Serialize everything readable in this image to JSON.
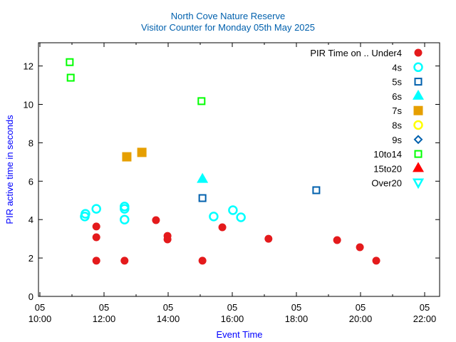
{
  "chart_data": {
    "type": "scatter",
    "title": [
      "North Cove Nature Reserve",
      "Visitor Counter for Monday 05th May 2025"
    ],
    "xlabel": "Event Time",
    "ylabel": "PIR active time in seconds",
    "xlim": [
      10,
      22
    ],
    "ylim": [
      0,
      13.2
    ],
    "x_ticks": [
      {
        "v": 10,
        "l1": "05",
        "l2": "10:00"
      },
      {
        "v": 12,
        "l1": "05",
        "l2": "12:00"
      },
      {
        "v": 14,
        "l1": "05",
        "l2": "14:00"
      },
      {
        "v": 16,
        "l1": "05",
        "l2": "16:00"
      },
      {
        "v": 18,
        "l1": "05",
        "l2": "18:00"
      },
      {
        "v": 20,
        "l1": "05",
        "l2": "20:00"
      },
      {
        "v": 22,
        "l1": "05",
        "l2": "22:00"
      }
    ],
    "y_ticks": [
      0,
      2,
      4,
      6,
      8,
      10,
      12
    ],
    "legend_title": "PIR Time on ..",
    "legend_position": "top-right",
    "series": [
      {
        "name": "Under4",
        "marker": "filled-circle",
        "color": "#e41a1c",
        "points": [
          [
            11.76,
            3.64
          ],
          [
            11.76,
            3.08
          ],
          [
            11.76,
            1.86
          ],
          [
            12.64,
            1.86
          ],
          [
            13.62,
            3.97
          ],
          [
            13.98,
            3.15
          ],
          [
            13.98,
            2.97
          ],
          [
            15.07,
            1.86
          ],
          [
            15.69,
            3.6
          ],
          [
            17.13,
            3.0
          ],
          [
            19.27,
            2.93
          ],
          [
            19.98,
            2.56
          ],
          [
            20.49,
            1.86
          ]
        ]
      },
      {
        "name": "4s",
        "marker": "open-circle",
        "color": "#00ffff",
        "points": [
          [
            11.4,
            4.16
          ],
          [
            11.42,
            4.3
          ],
          [
            11.76,
            4.56
          ],
          [
            12.64,
            4.68
          ],
          [
            12.64,
            4.56
          ],
          [
            12.64,
            4.0
          ],
          [
            15.42,
            4.16
          ],
          [
            16.02,
            4.49
          ],
          [
            16.27,
            4.12
          ]
        ]
      },
      {
        "name": "5s",
        "marker": "open-square",
        "color": "#0060ad",
        "points": [
          [
            15.07,
            5.12
          ],
          [
            18.62,
            5.53
          ]
        ]
      },
      {
        "name": "6s",
        "marker": "filled-triangle",
        "color": "#00ffff",
        "points": [
          [
            15.07,
            6.1
          ]
        ]
      },
      {
        "name": "7s",
        "marker": "filled-square",
        "color": "#e69f00",
        "points": [
          [
            12.71,
            7.27
          ],
          [
            13.18,
            7.5
          ]
        ]
      },
      {
        "name": "8s",
        "marker": "open-circle",
        "color": "#ffff00",
        "points": []
      },
      {
        "name": "9s",
        "marker": "open-diamond",
        "color": "#0060ad",
        "points": []
      },
      {
        "name": "10to14",
        "marker": "open-square",
        "color": "#00ff00",
        "points": [
          [
            10.93,
            12.2
          ],
          [
            10.96,
            11.39
          ],
          [
            15.04,
            10.17
          ]
        ]
      },
      {
        "name": "15to20",
        "marker": "filled-triangle",
        "color": "#ff0000",
        "points": []
      },
      {
        "name": "Over20",
        "marker": "open-triangle-down",
        "color": "#00ffff",
        "points": []
      }
    ]
  }
}
